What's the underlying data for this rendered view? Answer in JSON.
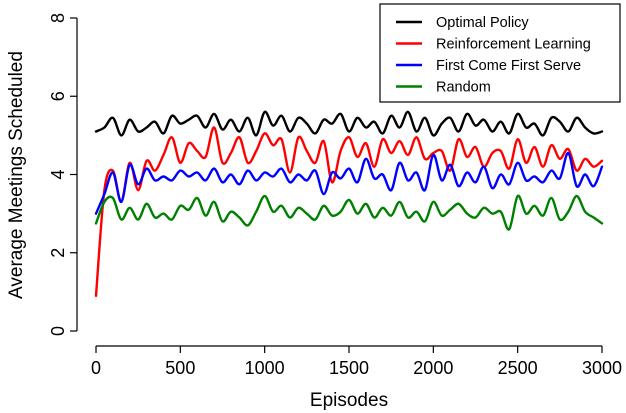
{
  "chart_data": {
    "type": "line",
    "title": "",
    "xlabel": "Episodes",
    "ylabel": "Average Meetings Scheduled",
    "xlim": [
      0,
      3000
    ],
    "ylim": [
      0,
      8
    ],
    "xticks": [
      0,
      500,
      1000,
      1500,
      2000,
      2500,
      3000
    ],
    "yticks": [
      0,
      2,
      4,
      6,
      8
    ],
    "grid": false,
    "legend_position": "top-right",
    "x": [
      0,
      50,
      100,
      150,
      200,
      250,
      300,
      350,
      400,
      450,
      500,
      550,
      600,
      650,
      700,
      750,
      800,
      850,
      900,
      950,
      1000,
      1050,
      1100,
      1150,
      1200,
      1250,
      1300,
      1350,
      1400,
      1450,
      1500,
      1550,
      1600,
      1650,
      1700,
      1750,
      1800,
      1850,
      1900,
      1950,
      2000,
      2050,
      2100,
      2150,
      2200,
      2250,
      2300,
      2350,
      2400,
      2450,
      2500,
      2550,
      2600,
      2650,
      2700,
      2750,
      2800,
      2850,
      2900,
      2950,
      3000
    ],
    "series": [
      {
        "name": "Optimal Policy",
        "color": "#000000",
        "values": [
          5.1,
          5.2,
          5.45,
          5.0,
          5.4,
          5.1,
          5.2,
          5.35,
          5.05,
          5.5,
          5.3,
          5.4,
          5.5,
          5.2,
          5.55,
          5.15,
          5.4,
          5.1,
          5.45,
          5.0,
          5.6,
          5.25,
          5.5,
          5.1,
          5.45,
          5.3,
          5.05,
          5.4,
          5.3,
          5.55,
          5.1,
          5.45,
          5.2,
          5.35,
          5.05,
          5.5,
          5.2,
          5.6,
          5.1,
          5.45,
          5.0,
          5.3,
          5.45,
          5.1,
          5.55,
          5.25,
          5.4,
          5.1,
          5.35,
          5.05,
          5.55,
          5.2,
          5.3,
          5.0,
          5.45,
          5.35,
          5.1,
          5.45,
          5.2,
          5.05,
          5.1
        ]
      },
      {
        "name": "Reinforcement Learning",
        "color": "#ff0000",
        "values": [
          0.9,
          3.6,
          4.1,
          3.3,
          4.3,
          3.6,
          4.35,
          4.1,
          4.5,
          4.95,
          4.3,
          4.8,
          4.6,
          4.45,
          5.2,
          4.3,
          4.55,
          4.95,
          4.3,
          4.6,
          5.05,
          4.75,
          4.9,
          4.05,
          4.95,
          4.6,
          4.3,
          4.85,
          3.8,
          4.6,
          4.95,
          4.45,
          4.8,
          4.2,
          4.9,
          4.55,
          4.85,
          4.5,
          4.95,
          4.4,
          4.55,
          4.6,
          4.1,
          4.9,
          4.45,
          4.7,
          4.2,
          4.55,
          4.6,
          4.15,
          4.9,
          4.3,
          4.7,
          4.2,
          4.75,
          4.4,
          4.65,
          4.1,
          4.4,
          4.2,
          4.35
        ]
      },
      {
        "name": "First Come First Serve",
        "color": "#0000ff",
        "values": [
          3.0,
          3.5,
          4.05,
          3.3,
          4.25,
          3.75,
          4.15,
          3.85,
          3.95,
          3.85,
          4.1,
          3.95,
          4.05,
          3.85,
          4.15,
          3.8,
          4.0,
          3.75,
          4.1,
          3.85,
          4.05,
          3.95,
          4.15,
          3.8,
          4.0,
          3.85,
          4.1,
          3.5,
          4.05,
          3.9,
          4.15,
          3.8,
          4.4,
          3.9,
          4.0,
          3.6,
          4.3,
          3.85,
          4.05,
          3.6,
          4.5,
          3.85,
          4.25,
          3.7,
          4.05,
          3.8,
          4.2,
          3.65,
          4.0,
          3.75,
          4.3,
          3.85,
          3.95,
          3.8,
          4.1,
          3.9,
          4.55,
          3.7,
          4.0,
          3.7,
          4.2
        ]
      },
      {
        "name": "Random",
        "color": "#008000",
        "values": [
          2.75,
          3.3,
          3.4,
          2.85,
          3.15,
          2.85,
          3.25,
          2.9,
          3.0,
          2.85,
          3.2,
          3.1,
          3.4,
          2.95,
          3.3,
          2.8,
          3.05,
          2.9,
          2.7,
          3.05,
          3.45,
          3.05,
          3.2,
          2.9,
          3.15,
          3.0,
          2.85,
          3.2,
          2.95,
          3.05,
          3.35,
          3.0,
          3.25,
          2.9,
          3.15,
          2.95,
          3.3,
          2.9,
          3.05,
          2.8,
          3.3,
          2.95,
          3.1,
          3.25,
          3.0,
          2.9,
          3.15,
          3.0,
          3.05,
          2.6,
          3.45,
          3.0,
          3.2,
          2.95,
          3.4,
          2.85,
          3.05,
          3.45,
          3.05,
          2.9,
          2.75
        ]
      }
    ]
  }
}
